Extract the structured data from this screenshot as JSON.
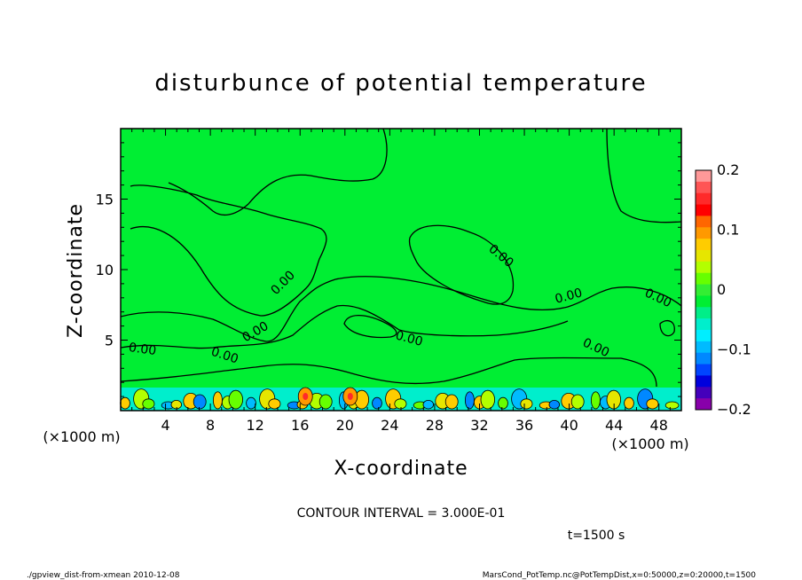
{
  "chart_data": {
    "type": "heatmap",
    "title": "disturbunce of potential temperature",
    "xlabel": "X-coordinate",
    "ylabel": "Z-coordinate",
    "x_unit": "(×1000 m)",
    "y_unit": "(×1000 m)",
    "x_ticks": [
      4,
      8,
      12,
      16,
      20,
      24,
      28,
      32,
      36,
      40,
      44,
      48
    ],
    "y_ticks": [
      5,
      10,
      15
    ],
    "xlim": [
      0,
      50
    ],
    "ylim": [
      0,
      20
    ],
    "colorbar": {
      "ticks": [
        "0.2",
        "0.1",
        "0",
        "−0.1",
        "−0.2"
      ],
      "tick_values": [
        0.2,
        0.1,
        0,
        -0.1,
        -0.2
      ],
      "range": [
        -0.2,
        0.2
      ],
      "colors": [
        "#ff9999",
        "#ff5555",
        "#ff2a2a",
        "#ff0000",
        "#ff6600",
        "#ff9900",
        "#ffcc00",
        "#e6e600",
        "#b3ff00",
        "#66ff00",
        "#33ee33",
        "#00ee33",
        "#00ee88",
        "#00eecc",
        "#00eeff",
        "#00bbff",
        "#0088ff",
        "#0044ff",
        "#0000dd",
        "#4400bb",
        "#8800aa"
      ]
    },
    "contour_label": "0.00",
    "contour_interval_text": "CONTOUR INTERVAL = 3.000E-01",
    "time_text": "t=1500 s",
    "field_background_color": "#00ee33"
  },
  "footer": {
    "left": "./gpview_dist-from-xmean  2010-12-08",
    "right": "MarsCond_PotTemp.nc@PotTempDist,x=0:50000,z=0:20000,t=1500"
  }
}
